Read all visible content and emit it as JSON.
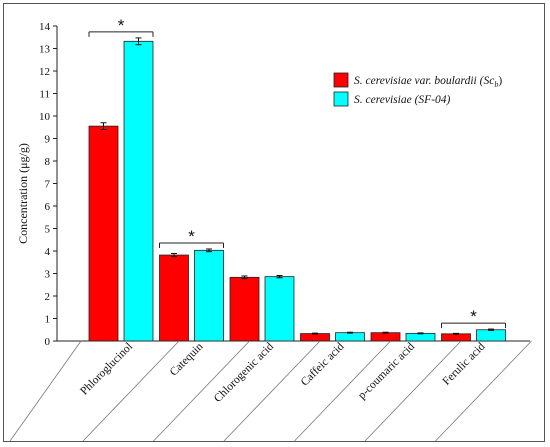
{
  "chart_data": {
    "type": "bar",
    "ylabel": "Concentration (μg/g)",
    "ylim": [
      0,
      14
    ],
    "yticks": [
      0,
      1,
      2,
      3,
      4,
      5,
      6,
      7,
      8,
      9,
      10,
      11,
      12,
      13,
      14
    ],
    "grid": false,
    "legend_position": "top-right",
    "categories": [
      "Phloroglucinol",
      "Catequin",
      "Chlorogenic acid",
      "Caffeic acid",
      "p-coumaric acid",
      "Ferulic acid"
    ],
    "series": [
      {
        "name_main": "S. cerevisiae var. boulardii",
        "name_paren": "(Sc",
        "name_sub": "b",
        "name_close": ")",
        "color": "#ff0000",
        "values": [
          9.55,
          3.82,
          2.83,
          0.33,
          0.37,
          0.32
        ],
        "errors": [
          0.15,
          0.07,
          0.06,
          0.02,
          0.02,
          0.02
        ]
      },
      {
        "name_main": "S. cerevisiae",
        "name_paren": "(SF-04)",
        "color": "#00ffff",
        "values": [
          13.32,
          4.03,
          2.86,
          0.37,
          0.34,
          0.5
        ],
        "errors": [
          0.15,
          0.06,
          0.05,
          0.02,
          0.02,
          0.03
        ]
      }
    ],
    "significance": [
      {
        "category_index": 0,
        "label": "*"
      },
      {
        "category_index": 1,
        "label": "*"
      },
      {
        "category_index": 5,
        "label": "*"
      }
    ]
  }
}
